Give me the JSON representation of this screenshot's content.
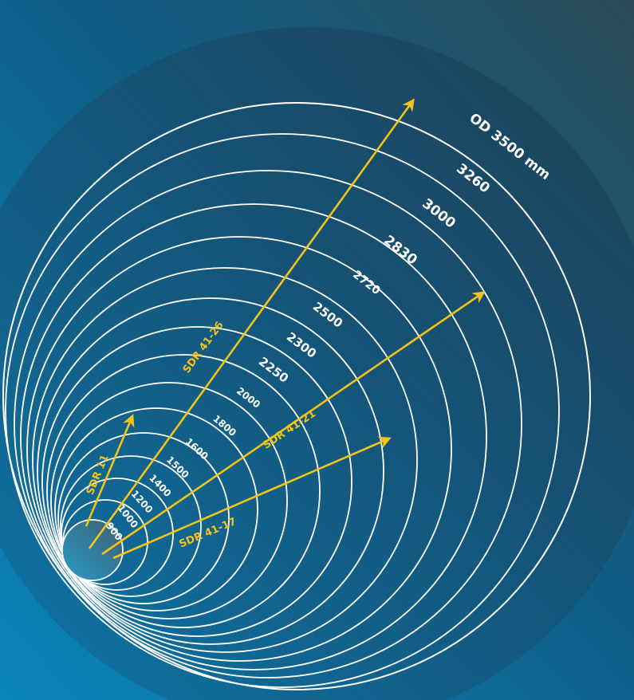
{
  "diagram": {
    "rings": [
      {
        "label": "900"
      },
      {
        "label": "1000"
      },
      {
        "label": "1200"
      },
      {
        "label": "1400"
      },
      {
        "label": "1500"
      },
      {
        "label": "1600"
      },
      {
        "label": "1800"
      },
      {
        "label": "2000"
      },
      {
        "label": "2250"
      },
      {
        "label": "2300"
      },
      {
        "label": "2500"
      },
      {
        "label": "2720"
      },
      {
        "label": "2830"
      },
      {
        "label": "3000"
      },
      {
        "label": "3260"
      },
      {
        "label": "OD 3500 mm"
      }
    ],
    "arrows": [
      {
        "label": "SDR 11"
      },
      {
        "label": "SDR 41-26"
      },
      {
        "label": "SDR 41-21"
      },
      {
        "label": "SDR 41-17"
      }
    ],
    "colors": {
      "background_dark": "#1f4a5e",
      "background_light": "#0a86bd",
      "ring_stroke": "#ffffff",
      "arrow": "#f2c318"
    }
  }
}
